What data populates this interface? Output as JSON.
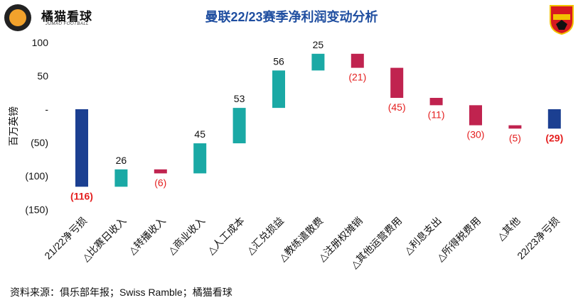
{
  "header": {
    "brand": "橘猫看球",
    "brand_sub": "JUMAO FOOTBALL",
    "title": "曼联22/23赛季净利润变动分析",
    "crest_text": "MANCHESTER UNITED"
  },
  "footer": {
    "source": "资料来源：俱乐部年报；Swiss Ramble；橘猫看球"
  },
  "chart_data": {
    "type": "waterfall",
    "title": "曼联22/23赛季净利润变动分析",
    "ylabel": "百万英镑",
    "ylim": [
      -150,
      100
    ],
    "yticks": [
      100,
      50,
      0,
      -50,
      -100,
      -150
    ],
    "ytick_labels": [
      "100",
      "50",
      "-",
      "(50)",
      "(100)",
      "(150)"
    ],
    "grid": false,
    "categories": [
      "21/22净亏损",
      "△比赛日收入",
      "△转播收入",
      "△商业收入",
      "△人工成本",
      "△汇兑损益",
      "△教练遣散费",
      "△注册权摊销",
      "△其他运营费用",
      "△利息支出",
      "△所得税费用",
      "△其他",
      "22/23净亏损"
    ],
    "values": [
      -116,
      26,
      -6,
      45,
      53,
      56,
      25,
      -21,
      -45,
      -11,
      -30,
      -5,
      -29
    ],
    "kinds": [
      "total",
      "delta",
      "delta",
      "delta",
      "delta",
      "delta",
      "delta",
      "delta",
      "delta",
      "delta",
      "delta",
      "delta",
      "total"
    ],
    "data_labels": [
      "(116)",
      "26",
      "(6)",
      "45",
      "53",
      "56",
      "25",
      "(21)",
      "(45)",
      "(11)",
      "(30)",
      "(5)",
      "(29)"
    ],
    "colors": {
      "total": "#1b3f91",
      "increase": "#1aa9a5",
      "decrease": "#c0234f",
      "label_positive": "#111111",
      "label_negative": "#e41e1e"
    }
  }
}
